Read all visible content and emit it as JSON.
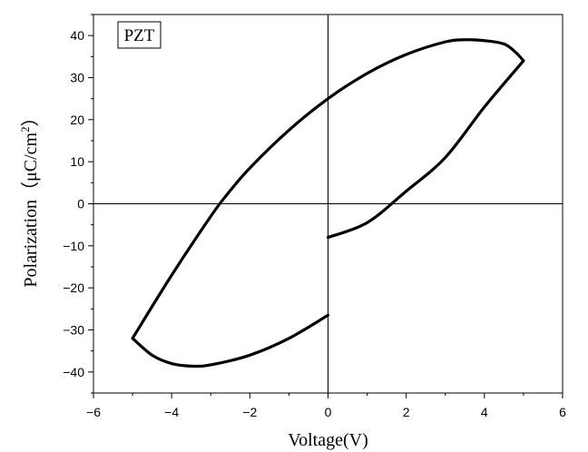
{
  "chart_data": {
    "type": "line",
    "title": "",
    "xlabel": "Voltage(V)",
    "ylabel": {
      "main": "Polarization（μC/cm",
      "sup": "2",
      "end": "）"
    },
    "xlim": [
      -6,
      6
    ],
    "ylim": [
      -45,
      45
    ],
    "x_ticks": [
      -6,
      -4,
      -2,
      0,
      2,
      4,
      6
    ],
    "y_ticks": [
      -40,
      -30,
      -20,
      -10,
      0,
      10,
      20,
      30,
      40
    ],
    "x_tick_labels": [
      "−6",
      "−4",
      "−2",
      "0",
      "2",
      "4",
      "6"
    ],
    "y_tick_labels": [
      "−40",
      "−30",
      "−20",
      "−10",
      "0",
      "10",
      "20",
      "30",
      "40"
    ],
    "grid": false,
    "zero_lines": true,
    "legend_box_text": "PZT",
    "legend_placement": "top-left",
    "series": [
      {
        "color": "#000000",
        "x": [
          0,
          1,
          2,
          3,
          4,
          5,
          4.8,
          4.5,
          4,
          3.5,
          3,
          2,
          1,
          0,
          -1,
          -2,
          -2.6,
          -3,
          -4,
          -5,
          -4.5,
          -4,
          -3.5,
          -3,
          -2,
          -1,
          0
        ],
        "y": [
          -8,
          -4.5,
          3,
          11,
          23,
          34,
          36,
          38,
          38.8,
          39,
          38.5,
          35.5,
          31,
          25,
          17.5,
          8.5,
          2,
          -3,
          -17,
          -32,
          -36,
          -38,
          -38.6,
          -38.3,
          -36,
          -32,
          -26.5
        ]
      }
    ]
  }
}
